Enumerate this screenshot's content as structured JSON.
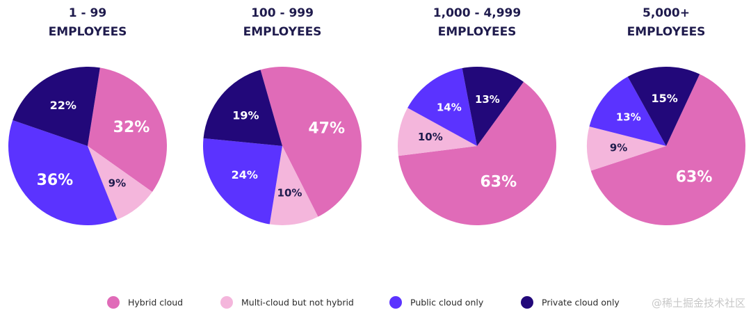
{
  "chart_data": [
    {
      "type": "pie",
      "title_line1": "1 - 99",
      "title_line2": "EMPLOYEES",
      "slices": [
        {
          "series": "Hybrid cloud",
          "value": 32,
          "label": "32%"
        },
        {
          "series": "Multi-cloud but not hybrid",
          "value": 9,
          "label": "9%"
        },
        {
          "series": "Public cloud only",
          "value": 36,
          "label": "36%"
        },
        {
          "series": "Private cloud only",
          "value": 22,
          "label": "22%"
        }
      ]
    },
    {
      "type": "pie",
      "title_line1": "100 - 999",
      "title_line2": "EMPLOYEES",
      "slices": [
        {
          "series": "Hybrid cloud",
          "value": 47,
          "label": "47%"
        },
        {
          "series": "Multi-cloud but not hybrid",
          "value": 10,
          "label": "10%"
        },
        {
          "series": "Public cloud only",
          "value": 24,
          "label": "24%"
        },
        {
          "series": "Private cloud only",
          "value": 19,
          "label": "19%"
        }
      ]
    },
    {
      "type": "pie",
      "title_line1": "1,000 - 4,999",
      "title_line2": "EMPLOYEES",
      "slices": [
        {
          "series": "Hybrid cloud",
          "value": 63,
          "label": "63%"
        },
        {
          "series": "Multi-cloud but not hybrid",
          "value": 10,
          "label": "10%"
        },
        {
          "series": "Public cloud only",
          "value": 14,
          "label": "14%"
        },
        {
          "series": "Private cloud only",
          "value": 13,
          "label": "13%"
        }
      ]
    },
    {
      "type": "pie",
      "title_line1": "5,000+",
      "title_line2": "EMPLOYEES",
      "slices": [
        {
          "series": "Hybrid cloud",
          "value": 63,
          "label": "63%"
        },
        {
          "series": "Multi-cloud but not hybrid",
          "value": 9,
          "label": "9%"
        },
        {
          "series": "Public cloud only",
          "value": 13,
          "label": "13%"
        },
        {
          "series": "Private cloud only",
          "value": 15,
          "label": "15%"
        }
      ]
    }
  ],
  "legend": {
    "placement": "bottom",
    "items": [
      {
        "label": "Hybrid cloud",
        "color": "#e06bb8",
        "text_color": "#ffffff"
      },
      {
        "label": "Multi-cloud but not hybrid",
        "color": "#f4b6dc",
        "text_color": "#1f1b4d"
      },
      {
        "label": "Public cloud only",
        "color": "#5b33ff",
        "text_color": "#ffffff"
      },
      {
        "label": "Private cloud only",
        "color": "#22087a",
        "text_color": "#ffffff"
      }
    ]
  },
  "watermark": "@稀土掘金技术社区"
}
